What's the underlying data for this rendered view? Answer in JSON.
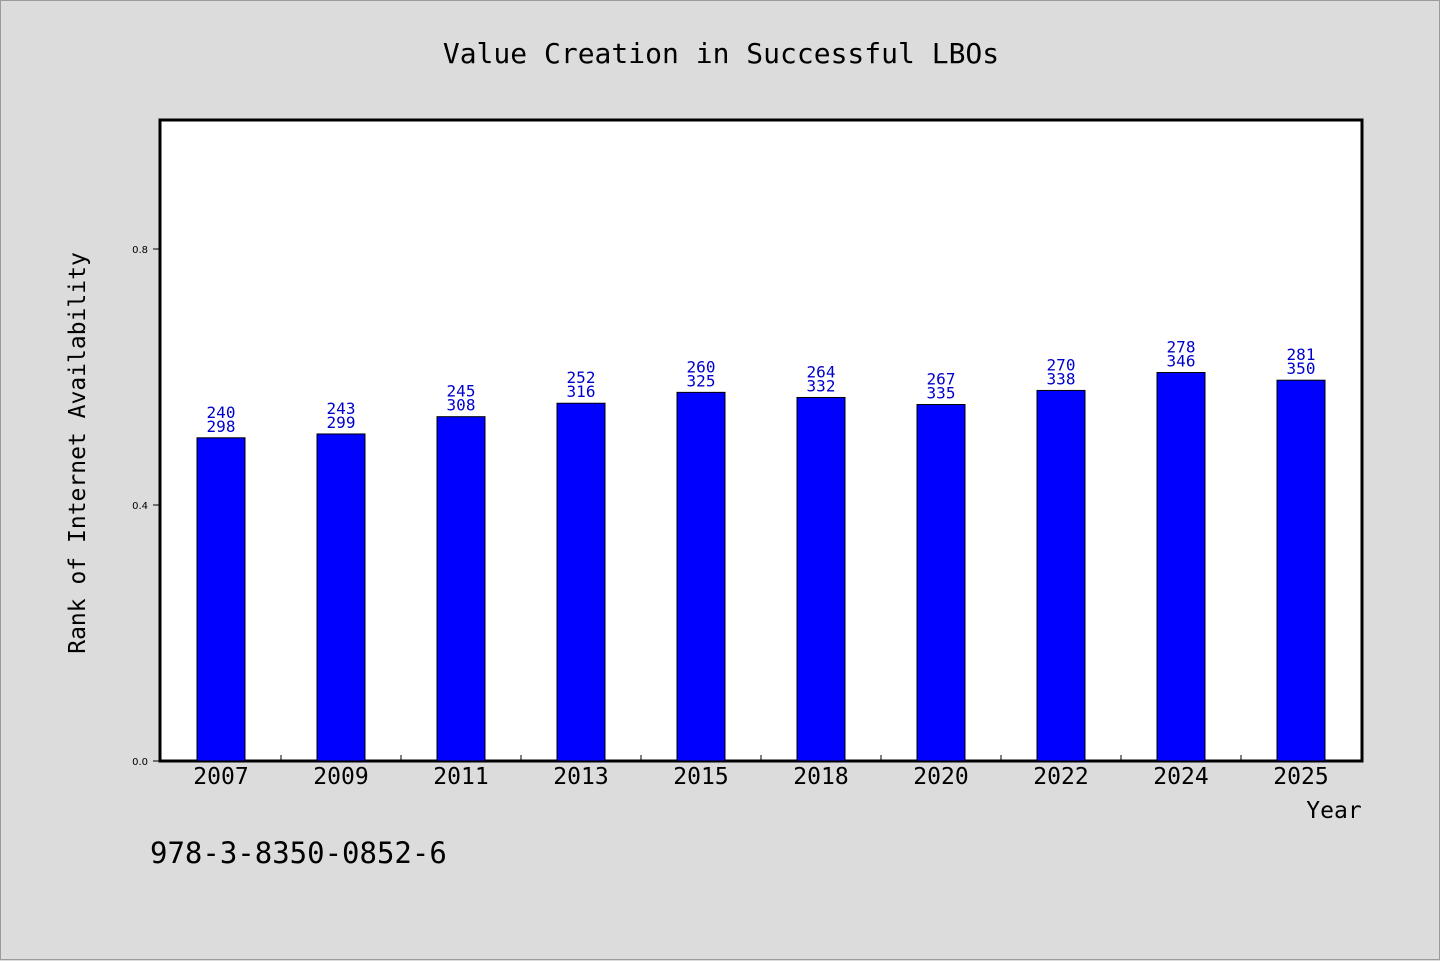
{
  "chart_data": {
    "type": "bar",
    "title": "Value Creation in Successful LBOs",
    "xlabel": "Year",
    "ylabel": "Rank of Internet Availability",
    "categories": [
      "2007",
      "2009",
      "2011",
      "2013",
      "2015",
      "2018",
      "2020",
      "2022",
      "2024",
      "2025"
    ],
    "values": [
      0.505,
      0.511,
      0.538,
      0.559,
      0.576,
      0.568,
      0.557,
      0.579,
      0.607,
      0.595
    ],
    "bar_labels_top": [
      "240",
      "243",
      "245",
      "252",
      "260",
      "264",
      "267",
      "270",
      "278",
      "281"
    ],
    "bar_labels_bottom": [
      "298",
      "299",
      "308",
      "316",
      "325",
      "332",
      "335",
      "338",
      "346",
      "350"
    ],
    "ylim": [
      0,
      1.0
    ],
    "yticks": [
      0.0,
      0.4,
      0.8
    ],
    "ytick_labels": [
      "0.0",
      "0.4",
      "0.8"
    ],
    "bar_color": "#0000ff",
    "label_color": "#0000cc",
    "grid": false,
    "legend": "none"
  },
  "footer": {
    "isbn": "978-3-8350-0852-6"
  }
}
